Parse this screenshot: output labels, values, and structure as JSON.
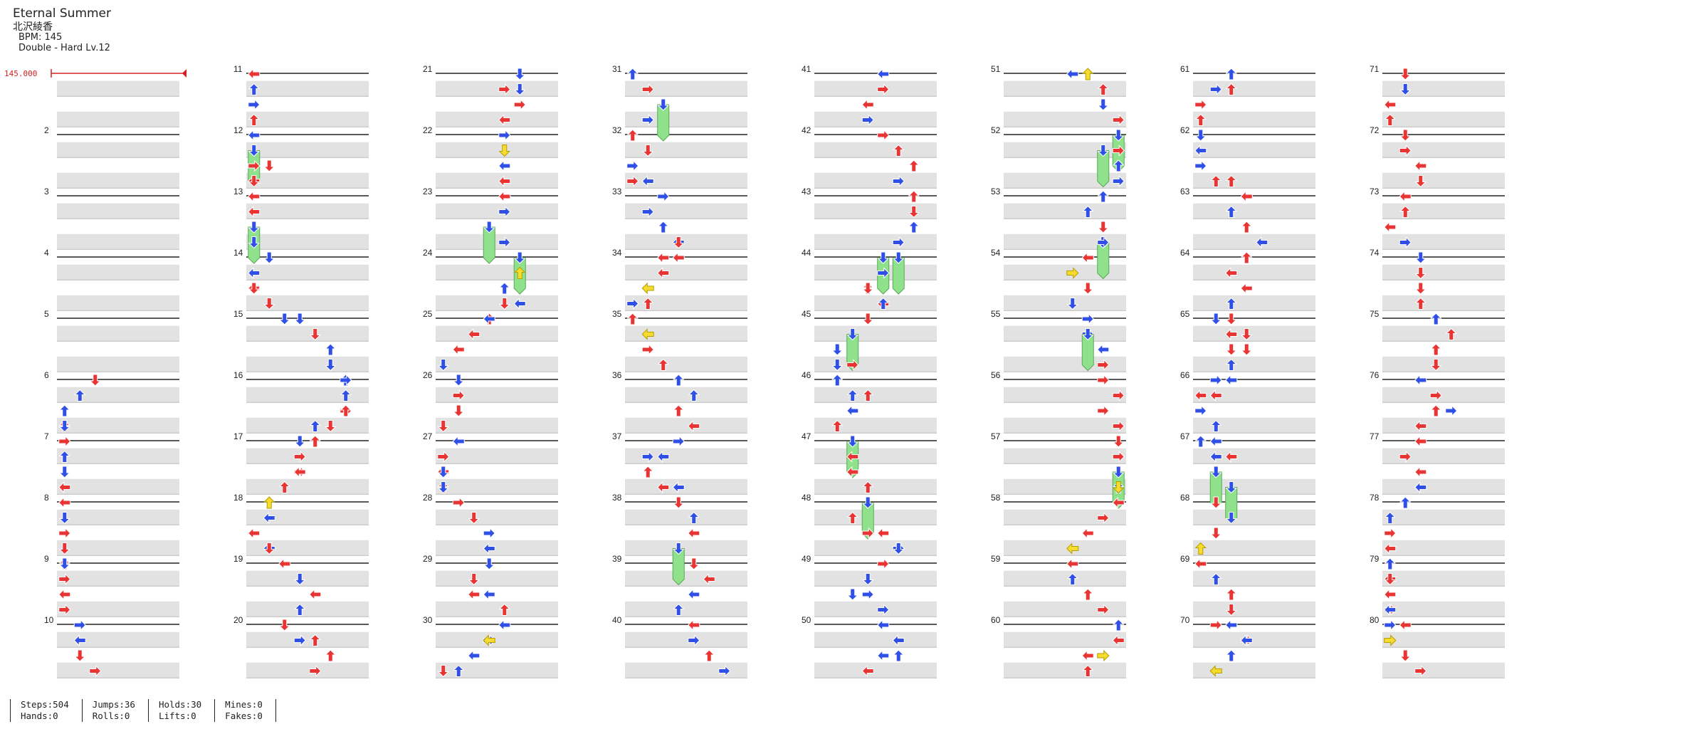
{
  "song": {
    "title": "Eternal Summer",
    "artist": "北沢綾香",
    "bpm_line": "BPM: 145",
    "difficulty_line": "Double - Hard  Lv.12"
  },
  "bpm_marker": "145.000",
  "colors": {
    "red": "#e93434",
    "blue": "#2f4fe6",
    "yellow": "#f6dc2e",
    "green": "#8fe28b"
  },
  "measure_labels": [
    "2",
    "3",
    "4",
    "5",
    "6",
    "7",
    "8",
    "9",
    "10",
    "11",
    "12",
    "13",
    "14",
    "15",
    "16",
    "17",
    "18",
    "19",
    "20",
    "21",
    "22",
    "23",
    "24",
    "25",
    "26",
    "27",
    "28",
    "29",
    "30",
    "31",
    "32",
    "33",
    "34",
    "35",
    "36",
    "37",
    "38",
    "39",
    "40",
    "41",
    "42",
    "43",
    "44",
    "45",
    "46",
    "47",
    "48",
    "49",
    "50",
    "51",
    "52",
    "53",
    "54",
    "55",
    "56",
    "57",
    "58",
    "59",
    "60",
    "61",
    "62",
    "63",
    "64",
    "65",
    "66",
    "67",
    "68",
    "69",
    "70",
    "71",
    "72",
    "73",
    "74",
    "75",
    "76",
    "77",
    "78",
    "79",
    "80"
  ],
  "stats": {
    "col1": [
      "Steps:504",
      "Hands:0"
    ],
    "col2": [
      "Jumps:36",
      "Rolls:0"
    ],
    "col3": [
      "Holds:30",
      "Lifts:0"
    ],
    "col4": [
      "Mines:0",
      "Fakes:0"
    ]
  }
}
